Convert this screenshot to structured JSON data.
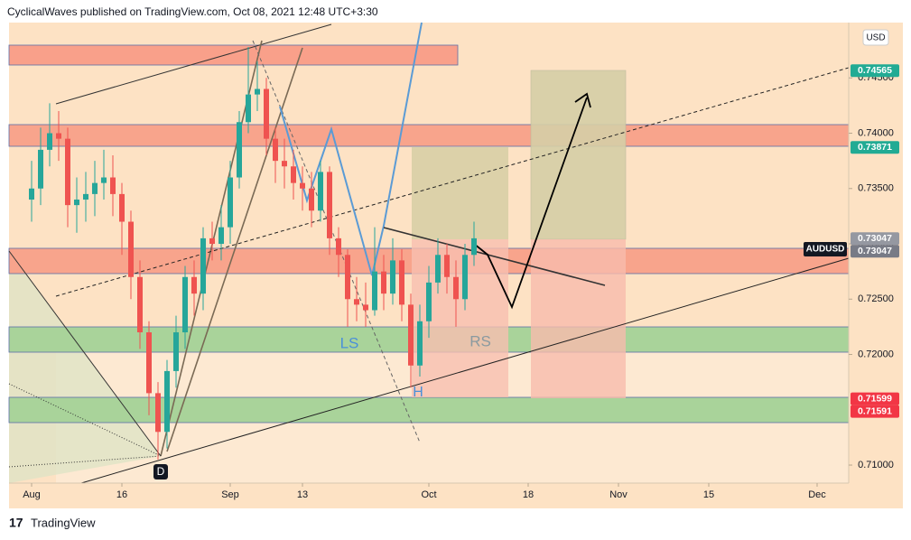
{
  "header": "CyclicalWaves published on TradingView.com, Oct 08, 2021 12:48 UTC+3:30",
  "footer": "TradingView",
  "chart_data": {
    "type": "candlestick",
    "symbol": "AUDUSD",
    "currency": "USD",
    "x": [
      "2021-08-02",
      "2021-08-03",
      "2021-08-04",
      "2021-08-05",
      "2021-08-06",
      "2021-08-09",
      "2021-08-10",
      "2021-08-11",
      "2021-08-12",
      "2021-08-13",
      "2021-08-16",
      "2021-08-17",
      "2021-08-18",
      "2021-08-19",
      "2021-08-20",
      "2021-08-23",
      "2021-08-24",
      "2021-08-25",
      "2021-08-26",
      "2021-08-27",
      "2021-08-30",
      "2021-08-31",
      "2021-09-01",
      "2021-09-02",
      "2021-09-03",
      "2021-09-06",
      "2021-09-07",
      "2021-09-08",
      "2021-09-09",
      "2021-09-10",
      "2021-09-13",
      "2021-09-14",
      "2021-09-15",
      "2021-09-16",
      "2021-09-17",
      "2021-09-20",
      "2021-09-21",
      "2021-09-22",
      "2021-09-23",
      "2021-09-24",
      "2021-09-27",
      "2021-09-28",
      "2021-09-29",
      "2021-09-30",
      "2021-10-01",
      "2021-10-04",
      "2021-10-05",
      "2021-10-06",
      "2021-10-07",
      "2021-10-08"
    ],
    "open": [
      0.734,
      0.735,
      0.7385,
      0.74,
      0.7395,
      0.7335,
      0.734,
      0.7345,
      0.7355,
      0.736,
      0.7345,
      0.732,
      0.727,
      0.722,
      0.7165,
      0.713,
      0.7185,
      0.722,
      0.727,
      0.7255,
      0.7305,
      0.73,
      0.7315,
      0.736,
      0.741,
      0.7435,
      0.744,
      0.7395,
      0.7375,
      0.737,
      0.7355,
      0.735,
      0.733,
      0.7365,
      0.7305,
      0.729,
      0.725,
      0.7245,
      0.724,
      0.7275,
      0.7255,
      0.7285,
      0.7245,
      0.719,
      0.723,
      0.7265,
      0.729,
      0.727,
      0.725,
      0.729
    ],
    "high": [
      0.7375,
      0.7405,
      0.7427,
      0.742,
      0.7405,
      0.736,
      0.7365,
      0.7375,
      0.7385,
      0.738,
      0.7355,
      0.733,
      0.7285,
      0.723,
      0.7175,
      0.7195,
      0.7235,
      0.728,
      0.7285,
      0.7315,
      0.732,
      0.7335,
      0.7375,
      0.742,
      0.7478,
      0.7465,
      0.745,
      0.7405,
      0.7395,
      0.7385,
      0.737,
      0.7365,
      0.7375,
      0.737,
      0.7315,
      0.7295,
      0.727,
      0.7265,
      0.7315,
      0.729,
      0.7305,
      0.7295,
      0.7255,
      0.7245,
      0.728,
      0.7305,
      0.73,
      0.7285,
      0.73,
      0.732
    ],
    "low": [
      0.732,
      0.7335,
      0.737,
      0.7375,
      0.7315,
      0.731,
      0.732,
      0.7325,
      0.734,
      0.7325,
      0.729,
      0.725,
      0.7205,
      0.7145,
      0.7105,
      0.7115,
      0.717,
      0.7205,
      0.7235,
      0.724,
      0.7285,
      0.7285,
      0.73,
      0.735,
      0.74,
      0.742,
      0.738,
      0.7355,
      0.735,
      0.734,
      0.733,
      0.7315,
      0.732,
      0.729,
      0.727,
      0.7225,
      0.723,
      0.7225,
      0.7235,
      0.724,
      0.7245,
      0.723,
      0.717,
      0.718,
      0.7215,
      0.7255,
      0.7255,
      0.7225,
      0.724,
      0.728
    ],
    "close": [
      0.735,
      0.7385,
      0.74,
      0.7395,
      0.7335,
      0.734,
      0.7345,
      0.7355,
      0.736,
      0.7345,
      0.732,
      0.727,
      0.722,
      0.7165,
      0.713,
      0.7185,
      0.722,
      0.727,
      0.7255,
      0.7305,
      0.73,
      0.7315,
      0.736,
      0.741,
      0.7435,
      0.744,
      0.7395,
      0.7375,
      0.737,
      0.7355,
      0.735,
      0.733,
      0.7365,
      0.7305,
      0.729,
      0.725,
      0.7245,
      0.724,
      0.7275,
      0.7255,
      0.7285,
      0.7245,
      0.719,
      0.723,
      0.7265,
      0.729,
      0.727,
      0.725,
      0.729,
      0.7305
    ],
    "up_color": "#26a69a",
    "down_color": "#ef5350",
    "xlim": [
      "2021-07-29",
      "2021-12-07"
    ],
    "xticks": [
      {
        "value": "2021-08-02",
        "label": "Aug"
      },
      {
        "value": "2021-08-16",
        "label": "16"
      },
      {
        "value": "2021-09-01",
        "label": "Sep"
      },
      {
        "value": "2021-09-13",
        "label": "13"
      },
      {
        "value": "2021-10-01",
        "label": "Oct"
      },
      {
        "value": "2021-10-18",
        "label": "18"
      },
      {
        "value": "2021-11-01",
        "label": "Nov"
      },
      {
        "value": "2021-11-15",
        "label": "15"
      },
      {
        "value": "2021-12-01",
        "label": "Dec"
      }
    ],
    "ylim": [
      0.70837,
      0.75
    ],
    "yticks": [
      {
        "value": 0.71,
        "label": "0.71000"
      },
      {
        "value": 0.72,
        "label": "0.72000"
      },
      {
        "value": 0.725,
        "label": "0.72500"
      },
      {
        "value": 0.73,
        "label": "0.73000"
      },
      {
        "value": 0.735,
        "label": "0.73500"
      },
      {
        "value": 0.74,
        "label": "0.74000"
      },
      {
        "value": 0.745,
        "label": "0.74500"
      }
    ],
    "grid": false,
    "price_labels": [
      {
        "value": 0.74565,
        "color": "#22ab94"
      },
      {
        "value": 0.73871,
        "color": "#22ab94"
      },
      {
        "value": 0.73047,
        "color": "#9598a1"
      },
      {
        "value": 0.73047,
        "color": "#787b86"
      },
      {
        "value": 0.71599,
        "color": "#f23645"
      },
      {
        "value": 0.71591,
        "color": "#f23645"
      }
    ],
    "annotations": [
      "LS",
      "H",
      "RS",
      "D"
    ]
  }
}
